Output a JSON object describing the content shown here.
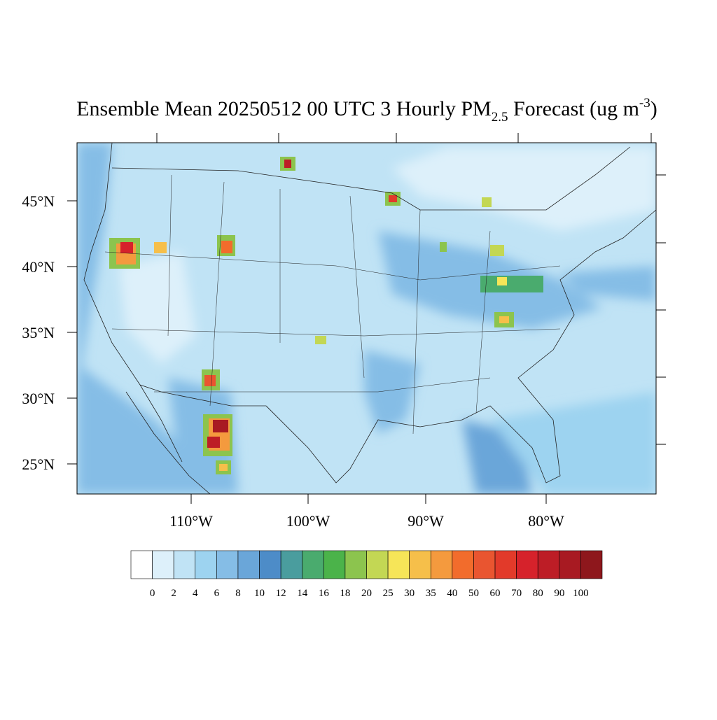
{
  "title": {
    "main": "Ensemble Mean 20250512 00 UTC 3 Hourly PM",
    "subscript": "2.5",
    "rest": " Forecast (ug m",
    "superscript": "-3",
    "close": ")"
  },
  "map": {
    "lat_labels": [
      "45°N",
      "40°N",
      "35°N",
      "30°N",
      "25°N"
    ],
    "lon_labels": [
      "110°W",
      "100°W",
      "90°W",
      "80°W"
    ]
  },
  "colorbar": {
    "colors": [
      "#ffffff",
      "#ddf0fa",
      "#c0e3f5",
      "#9dd3f0",
      "#85bde6",
      "#6aa6d9",
      "#4d8cc8",
      "#4a9d9e",
      "#4aab6e",
      "#4bb34a",
      "#8cc44e",
      "#c3d754",
      "#f6e558",
      "#f6bf4a",
      "#f49a3e",
      "#f26c2c",
      "#e95530",
      "#e23a2a",
      "#d6222b",
      "#bd1d26",
      "#a81a22",
      "#8e171c"
    ],
    "labels": [
      "0",
      "2",
      "4",
      "6",
      "8",
      "10",
      "12",
      "14",
      "16",
      "18",
      "20",
      "25",
      "30",
      "35",
      "40",
      "50",
      "60",
      "70",
      "80",
      "90",
      "100"
    ]
  }
}
